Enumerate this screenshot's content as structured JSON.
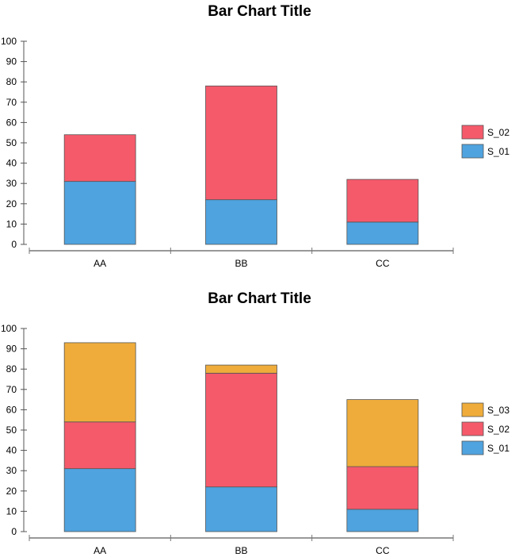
{
  "chart_data": [
    {
      "type": "bar",
      "stacked": true,
      "title": "Bar Chart Title",
      "categories": [
        "AA",
        "BB",
        "CC"
      ],
      "ylim": [
        0,
        100
      ],
      "yticks": [
        0,
        10,
        20,
        30,
        40,
        50,
        60,
        70,
        80,
        90,
        100
      ],
      "legend_position": "right",
      "grid": false,
      "series": [
        {
          "name": "S_01",
          "color": "#4FA3DF",
          "values": [
            31,
            22,
            11
          ]
        },
        {
          "name": "S_02",
          "color": "#F55A6B",
          "values": [
            23,
            56,
            21
          ]
        }
      ]
    },
    {
      "type": "bar",
      "stacked": true,
      "title": "Bar Chart Title",
      "categories": [
        "AA",
        "BB",
        "CC"
      ],
      "ylim": [
        0,
        100
      ],
      "yticks": [
        0,
        10,
        20,
        30,
        40,
        50,
        60,
        70,
        80,
        90,
        100
      ],
      "legend_position": "right",
      "grid": false,
      "series": [
        {
          "name": "S_01",
          "color": "#4FA3DF",
          "values": [
            31,
            22,
            11
          ]
        },
        {
          "name": "S_02",
          "color": "#F55A6B",
          "values": [
            23,
            56,
            21
          ]
        },
        {
          "name": "S_03",
          "color": "#EFAC3A",
          "values": [
            39,
            4,
            33
          ]
        }
      ]
    }
  ]
}
